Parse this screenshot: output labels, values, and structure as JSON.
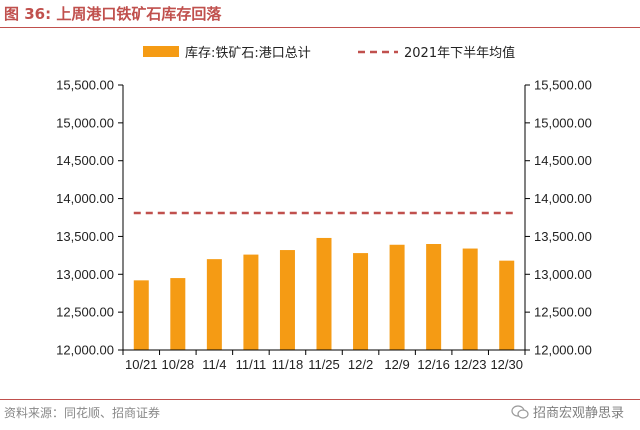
{
  "figure": {
    "title": "图 36:  上周港口铁矿石库存回落",
    "source": "资料来源：同花顺、招商证券",
    "watermark": "招商宏观静思录"
  },
  "colors": {
    "bar": "#f59b14",
    "reference_line": "#c0504d",
    "title": "#c0504d",
    "axis": "#000000"
  },
  "chart_data": {
    "type": "bar",
    "categories": [
      "10/21",
      "10/28",
      "11/4",
      "11/11",
      "11/18",
      "11/25",
      "12/2",
      "12/9",
      "12/16",
      "12/23",
      "12/30"
    ],
    "series": [
      {
        "name": "库存:铁矿石:港口总计",
        "type": "bar",
        "values": [
          12920,
          12950,
          13200,
          13260,
          13320,
          13480,
          13280,
          13390,
          13400,
          13340,
          13180
        ]
      },
      {
        "name": "2021年下半年均值",
        "type": "dashed-line",
        "value": 13810
      }
    ],
    "ylim": [
      12000,
      15500
    ],
    "yticks": [
      "15,500.00",
      "15,000.00",
      "14,500.00",
      "14,000.00",
      "13,500.00",
      "13,000.00",
      "12,500.00",
      "12,000.00"
    ],
    "ytick_values": [
      15500,
      15000,
      14500,
      14000,
      13500,
      13000,
      12500,
      12000
    ],
    "secondary_yticks": [
      "15,500.00",
      "15,000.00",
      "14,500.00",
      "14,000.00",
      "13,500.00",
      "13,000.00",
      "12,500.00",
      "12,000.00"
    ],
    "legend_position": "top",
    "grid": false
  }
}
